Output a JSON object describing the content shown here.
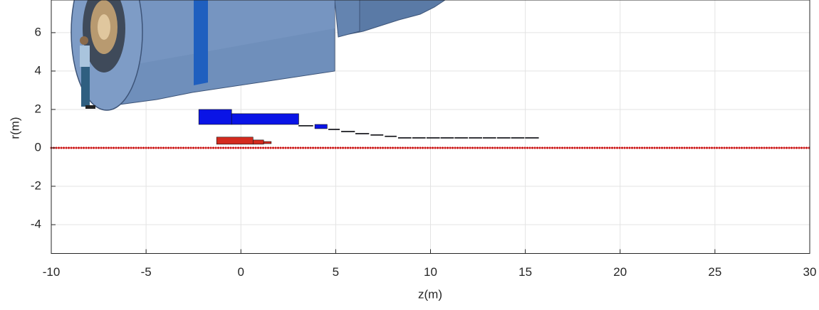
{
  "chart_data": {
    "type": "rect",
    "xlabel": "z(m)",
    "ylabel": "r(m)",
    "xlim": [
      -10,
      30
    ],
    "ylim": [
      -5.5,
      7.7
    ],
    "xticks": [
      -10,
      -5,
      0,
      5,
      10,
      15,
      20,
      25,
      30
    ],
    "yticks": [
      -4,
      -2,
      0,
      2,
      4,
      6
    ],
    "grid": true,
    "series": [
      {
        "color": "#0a14e6",
        "rects": [
          {
            "z": [
              -2.22,
              -0.49
            ],
            "r": [
              1.22,
              2.0
            ]
          },
          {
            "z": [
              -0.49,
              3.05
            ],
            "r": [
              1.22,
              1.78
            ]
          },
          {
            "z": [
              3.9,
              4.55
            ],
            "r": [
              1.0,
              1.22
            ]
          }
        ]
      },
      {
        "color": "#1c1f33",
        "rects": [
          {
            "z": [
              3.05,
              3.8
            ],
            "r": [
              1.13,
              1.17
            ]
          },
          {
            "z": [
              4.62,
              5.2
            ],
            "r": [
              0.94,
              0.98
            ]
          },
          {
            "z": [
              5.3,
              6.0
            ],
            "r": [
              0.83,
              0.87
            ]
          },
          {
            "z": [
              6.05,
              6.75
            ],
            "r": [
              0.72,
              0.76
            ]
          },
          {
            "z": [
              6.85,
              7.5
            ],
            "r": [
              0.65,
              0.69
            ]
          },
          {
            "z": [
              7.6,
              8.2
            ],
            "r": [
              0.58,
              0.62
            ]
          },
          {
            "z": [
              8.3,
              8.98
            ],
            "r": [
              0.5,
              0.54
            ]
          },
          {
            "z": [
              9.05,
              9.73
            ],
            "r": [
              0.5,
              0.54
            ]
          },
          {
            "z": [
              9.8,
              10.48
            ],
            "r": [
              0.5,
              0.54
            ]
          },
          {
            "z": [
              10.54,
              11.22
            ],
            "r": [
              0.5,
              0.54
            ]
          },
          {
            "z": [
              11.28,
              11.96
            ],
            "r": [
              0.5,
              0.54
            ]
          },
          {
            "z": [
              12.03,
              12.71
            ],
            "r": [
              0.5,
              0.54
            ]
          },
          {
            "z": [
              12.77,
              13.45
            ],
            "r": [
              0.5,
              0.54
            ]
          },
          {
            "z": [
              13.52,
              14.2
            ],
            "r": [
              0.5,
              0.54
            ]
          },
          {
            "z": [
              14.26,
              14.94
            ],
            "r": [
              0.5,
              0.54
            ]
          },
          {
            "z": [
              15.0,
              15.7
            ],
            "r": [
              0.5,
              0.54
            ]
          }
        ]
      },
      {
        "color": "#d42a1e",
        "rects": [
          {
            "z": [
              -1.28,
              0.64
            ],
            "r": [
              0.19,
              0.56
            ]
          },
          {
            "z": [
              0.64,
              1.2
            ],
            "r": [
              0.19,
              0.41
            ]
          },
          {
            "z": [
              1.2,
              1.6
            ],
            "r": [
              0.22,
              0.33
            ]
          }
        ]
      }
    ],
    "axis_line": {
      "z": [
        -10,
        30
      ],
      "r": [
        0,
        0
      ],
      "color": "#cc1111"
    }
  }
}
